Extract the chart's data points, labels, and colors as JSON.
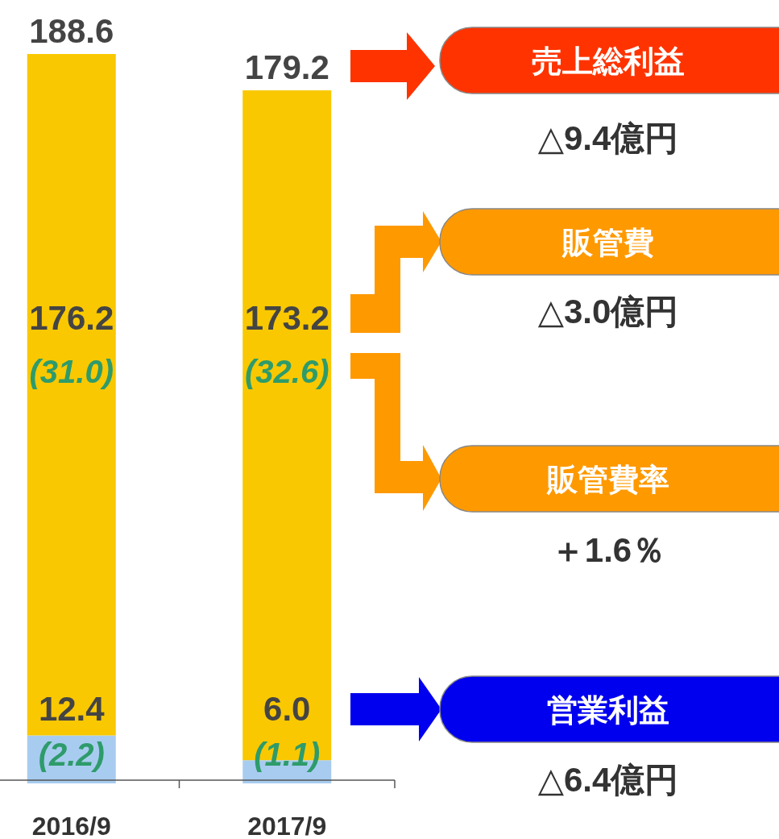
{
  "chart_data": {
    "type": "bar",
    "stacked": true,
    "categories": [
      "2016/9",
      "2017/9"
    ],
    "series": [
      {
        "color": "#a8ccf0",
        "values": [
          12.4,
          6.0
        ],
        "value_labels": [
          "12.4",
          "6.0"
        ]
      },
      {
        "color": "#f9c800",
        "values": [
          176.2,
          173.2
        ],
        "value_labels": [
          "176.2",
          "173.2"
        ]
      }
    ],
    "totals": [
      "188.6",
      "179.2"
    ],
    "annotations": [
      "(31.0)",
      "(2.2)",
      "(32.6)",
      "(1.1)",
      "売上総利益",
      "△9.4億円",
      "販管費",
      "△3.0億円",
      "販管費率",
      "＋1.6％",
      "営業利益",
      "△6.4億円"
    ]
  }
}
